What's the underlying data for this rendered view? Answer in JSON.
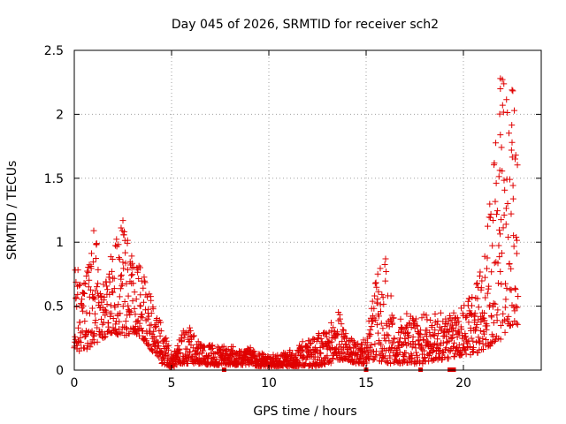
{
  "chart_data": {
    "type": "scatter",
    "title": "Day 045 of 2026, SRMTID for receiver sch2",
    "xlabel": "GPS time / hours",
    "ylabel": "SRMTID / TECUs",
    "xlim": [
      0,
      24
    ],
    "ylim": [
      0,
      2.5
    ],
    "xticks": [
      0,
      5,
      10,
      15,
      20
    ],
    "xtick_labels": [
      "0",
      "5",
      "10",
      "15",
      "20"
    ],
    "yticks": [
      0,
      0.5,
      1,
      1.5,
      2,
      2.5
    ],
    "ytick_labels": [
      "0",
      "0.5",
      "1",
      "1.5",
      "2",
      "2.5"
    ],
    "grid": true,
    "marker": "+",
    "color": "#e00000",
    "series": [
      {
        "name": "SRMTID",
        "envelope_x": [
          0,
          0.5,
          1,
          1.5,
          2,
          2.5,
          3,
          3.5,
          4,
          4.5,
          5,
          5.5,
          6,
          6.5,
          7,
          7.5,
          8,
          8.5,
          9,
          9.5,
          10,
          10.5,
          11,
          11.5,
          12,
          12.5,
          13,
          13.5,
          14,
          14.5,
          15,
          15.5,
          16,
          16.5,
          17,
          17.5,
          18,
          18.5,
          19,
          19.5,
          20,
          20.5,
          21,
          21.5,
          22,
          22.5
        ],
        "envelope_low": [
          0.15,
          0.15,
          0.2,
          0.25,
          0.3,
          0.25,
          0.3,
          0.25,
          0.15,
          0.05,
          0.02,
          0.05,
          0.05,
          0.05,
          0.04,
          0.04,
          0.04,
          0.04,
          0.04,
          0.03,
          0.03,
          0.03,
          0.03,
          0.03,
          0.03,
          0.03,
          0.04,
          0.08,
          0.08,
          0.05,
          0.05,
          0.08,
          0.05,
          0.05,
          0.05,
          0.05,
          0.05,
          0.08,
          0.08,
          0.1,
          0.12,
          0.12,
          0.15,
          0.2,
          0.25,
          0.35
        ],
        "envelope_high": [
          0.85,
          0.75,
          1.1,
          0.75,
          1.0,
          1.17,
          0.9,
          0.8,
          0.55,
          0.35,
          0.15,
          0.3,
          0.35,
          0.2,
          0.2,
          0.18,
          0.2,
          0.15,
          0.18,
          0.15,
          0.12,
          0.12,
          0.15,
          0.2,
          0.25,
          0.3,
          0.3,
          0.5,
          0.3,
          0.2,
          0.25,
          0.75,
          0.87,
          0.35,
          0.45,
          0.4,
          0.45,
          0.45,
          0.45,
          0.45,
          0.55,
          0.6,
          0.9,
          1.55,
          2.28,
          2.2
        ],
        "outliers": [
          {
            "x": 21.9,
            "y": 2.28
          },
          {
            "x": 21.9,
            "y": 2.2
          },
          {
            "x": 22.5,
            "y": 2.19
          },
          {
            "x": 21.9,
            "y": 1.84
          },
          {
            "x": 22.5,
            "y": 1.78
          },
          {
            "x": 2.5,
            "y": 1.17
          },
          {
            "x": 1.0,
            "y": 1.09
          },
          {
            "x": 16.0,
            "y": 0.87
          }
        ]
      }
    ],
    "axis_markers": [
      7.7,
      15.0,
      17.8,
      19.3,
      19.4,
      19.5
    ]
  }
}
